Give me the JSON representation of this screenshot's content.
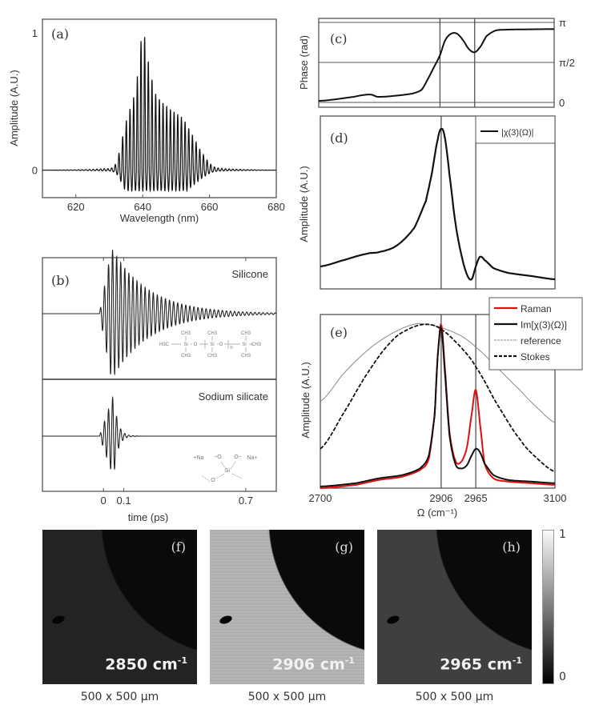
{
  "chart_data": [
    {
      "panel": "(a)",
      "type": "line",
      "xlabel": "Wavelength (nm)",
      "ylabel": "Amplitude (A.U.)",
      "xlim": [
        610,
        680
      ],
      "ylim": [
        -0.2,
        1.1
      ],
      "xticks": [
        "620",
        "640",
        "660",
        "680"
      ],
      "yticks": [
        "0",
        "1"
      ],
      "description_series": "interference fringes",
      "envelope": [
        [
          610,
          0
        ],
        [
          628,
          0.01
        ],
        [
          632,
          0.05
        ],
        [
          635,
          0.35
        ],
        [
          638,
          0.6
        ],
        [
          640,
          1.0
        ],
        [
          642,
          0.75
        ],
        [
          644,
          0.55
        ],
        [
          648,
          0.45
        ],
        [
          652,
          0.38
        ],
        [
          655,
          0.25
        ],
        [
          658,
          0.12
        ],
        [
          661,
          0.03
        ],
        [
          665,
          0.01
        ],
        [
          680,
          0
        ]
      ],
      "fringe_period_nm": 1.1,
      "color": "#111111"
    },
    {
      "panel": "(b)",
      "type": "line",
      "xlabel": "time (ps)",
      "xlim": [
        -0.3,
        0.85
      ],
      "xticks": [
        "0",
        "0.1",
        "0.7"
      ],
      "xtick_values": [
        0,
        0.1,
        0.7
      ],
      "series": [
        {
          "name": "Silicone",
          "onset_ps": 0,
          "peak_ps": 0.04,
          "decay_ps": 0.18,
          "period_ps": 0.02
        },
        {
          "name": "Sodium silicate",
          "onset_ps": 0,
          "peak_ps": 0.05,
          "decay_ps": 0.02,
          "period_ps": 0.02,
          "relative_amplitude": 0.75
        }
      ],
      "structure_labels": {
        "silicone": [
          "CH3",
          "CH3",
          "CH3",
          "H3C",
          "Si",
          "O",
          "Si",
          "O",
          "n",
          "Si",
          "CH3",
          "CH3",
          "CH3",
          "CH3"
        ],
        "sodium_silicate": [
          "+Na",
          "−O",
          "O−",
          "Na+",
          "Si",
          "O"
        ]
      }
    },
    {
      "panel": "(c)",
      "type": "line",
      "ylabel": "Phase (rad)",
      "xlim": [
        2700,
        3100
      ],
      "ylim": [
        -0.19,
        3.3
      ],
      "yticks": [
        "0",
        "π/2",
        "π"
      ],
      "ytick_values": [
        0,
        1.5708,
        3.1416
      ],
      "vlines": [
        2906,
        2965
      ],
      "x": [
        2700,
        2720,
        2760,
        2780,
        2790,
        2800,
        2830,
        2860,
        2875,
        2885,
        2895,
        2906,
        2915,
        2925,
        2935,
        2945,
        2955,
        2965,
        2975,
        2985,
        3000,
        3020,
        3100
      ],
      "values": [
        0.06,
        0.1,
        0.22,
        0.3,
        0.3,
        0.22,
        0.26,
        0.35,
        0.5,
        0.9,
        1.35,
        1.85,
        2.45,
        2.7,
        2.7,
        2.45,
        2.1,
        1.97,
        2.2,
        2.6,
        2.82,
        2.86,
        2.88
      ],
      "color": "#111111"
    },
    {
      "panel": "(d)",
      "type": "line",
      "ylabel": "Amplitude (A.U.)",
      "xlim": [
        2700,
        3100
      ],
      "ylim": [
        0,
        1.08
      ],
      "vlines": [
        2906,
        2965
      ],
      "legend": "top-right",
      "series": [
        {
          "name": "|χ(3)(Ω)|",
          "x": [
            2700,
            2740,
            2780,
            2800,
            2830,
            2860,
            2880,
            2890,
            2900,
            2906,
            2912,
            2920,
            2930,
            2940,
            2950,
            2958,
            2965,
            2972,
            2980,
            2995,
            3020,
            3060,
            3100
          ],
          "values": [
            0.14,
            0.18,
            0.22,
            0.23,
            0.27,
            0.38,
            0.55,
            0.72,
            0.93,
            1.0,
            0.95,
            0.72,
            0.42,
            0.22,
            0.09,
            0.06,
            0.14,
            0.2,
            0.18,
            0.13,
            0.1,
            0.08,
            0.06
          ]
        }
      ],
      "color": "#111111"
    },
    {
      "panel": "(e)",
      "type": "line",
      "xlabel": "Ω (cm⁻¹)",
      "ylabel": "Amplitude (A.U.)",
      "xlim": [
        2700,
        3100
      ],
      "ylim": [
        0,
        1.06
      ],
      "xticks": [
        "2700",
        "2906",
        "2965",
        "3100"
      ],
      "xtick_values": [
        2700,
        2906,
        2965,
        3100
      ],
      "vlines": [
        2906,
        2965
      ],
      "legend": "top-right",
      "series": [
        {
          "name": "Raman",
          "color": "#e01010",
          "style": "solid",
          "x": [
            2700,
            2760,
            2800,
            2840,
            2870,
            2885,
            2895,
            2900,
            2906,
            2912,
            2920,
            2930,
            2940,
            2950,
            2958,
            2965,
            2972,
            2980,
            2995,
            3020,
            3060,
            3100
          ],
          "values": [
            0.0,
            0.02,
            0.05,
            0.07,
            0.11,
            0.18,
            0.45,
            0.8,
            1.0,
            0.75,
            0.35,
            0.17,
            0.16,
            0.25,
            0.45,
            0.6,
            0.4,
            0.15,
            0.06,
            0.04,
            0.03,
            0.02
          ]
        },
        {
          "name": "Im[χ(3)(Ω)]",
          "color": "#111111",
          "style": "solid",
          "x": [
            2700,
            2760,
            2800,
            2840,
            2870,
            2885,
            2895,
            2900,
            2906,
            2912,
            2920,
            2930,
            2940,
            2950,
            2958,
            2965,
            2972,
            2980,
            2995,
            3020,
            3060,
            3100
          ],
          "values": [
            0.01,
            0.03,
            0.06,
            0.08,
            0.12,
            0.2,
            0.45,
            0.8,
            0.98,
            0.72,
            0.33,
            0.15,
            0.12,
            0.14,
            0.2,
            0.24,
            0.22,
            0.15,
            0.08,
            0.05,
            0.04,
            0.03
          ]
        },
        {
          "name": "reference",
          "color": "#888888",
          "style": "thin",
          "x": [
            2700,
            2740,
            2780,
            2820,
            2860,
            2880,
            2906,
            2940,
            2965,
            3000,
            3040,
            3070,
            3100
          ],
          "values": [
            0.53,
            0.7,
            0.84,
            0.94,
            1.0,
            1.0,
            0.98,
            0.93,
            0.86,
            0.74,
            0.6,
            0.49,
            0.4
          ]
        },
        {
          "name": "Stokes",
          "color": "#111111",
          "style": "dashed",
          "x": [
            2700,
            2740,
            2780,
            2820,
            2850,
            2880,
            2906,
            2940,
            2965,
            3000,
            3040,
            3070,
            3100
          ],
          "values": [
            0.24,
            0.46,
            0.7,
            0.89,
            0.97,
            1.0,
            0.97,
            0.86,
            0.74,
            0.52,
            0.3,
            0.18,
            0.1
          ]
        }
      ]
    },
    {
      "panel": "(f)-(h)",
      "type": "heatmap",
      "colorbar": {
        "min": "0",
        "max": "1",
        "colormap": "gray"
      },
      "images": [
        {
          "tag": "(f)",
          "wavenumber": "2850 cm",
          "exponent": "-1",
          "scale": "500 x 500 µm",
          "relative_brightness": 0.08
        },
        {
          "tag": "(g)",
          "wavenumber": "2906 cm",
          "exponent": "-1",
          "scale": "500 x 500 µm",
          "relative_brightness": 0.8
        },
        {
          "tag": "(h)",
          "wavenumber": "2965 cm",
          "exponent": "-1",
          "scale": "500 x 500 µm",
          "relative_brightness": 0.22
        }
      ]
    }
  ]
}
